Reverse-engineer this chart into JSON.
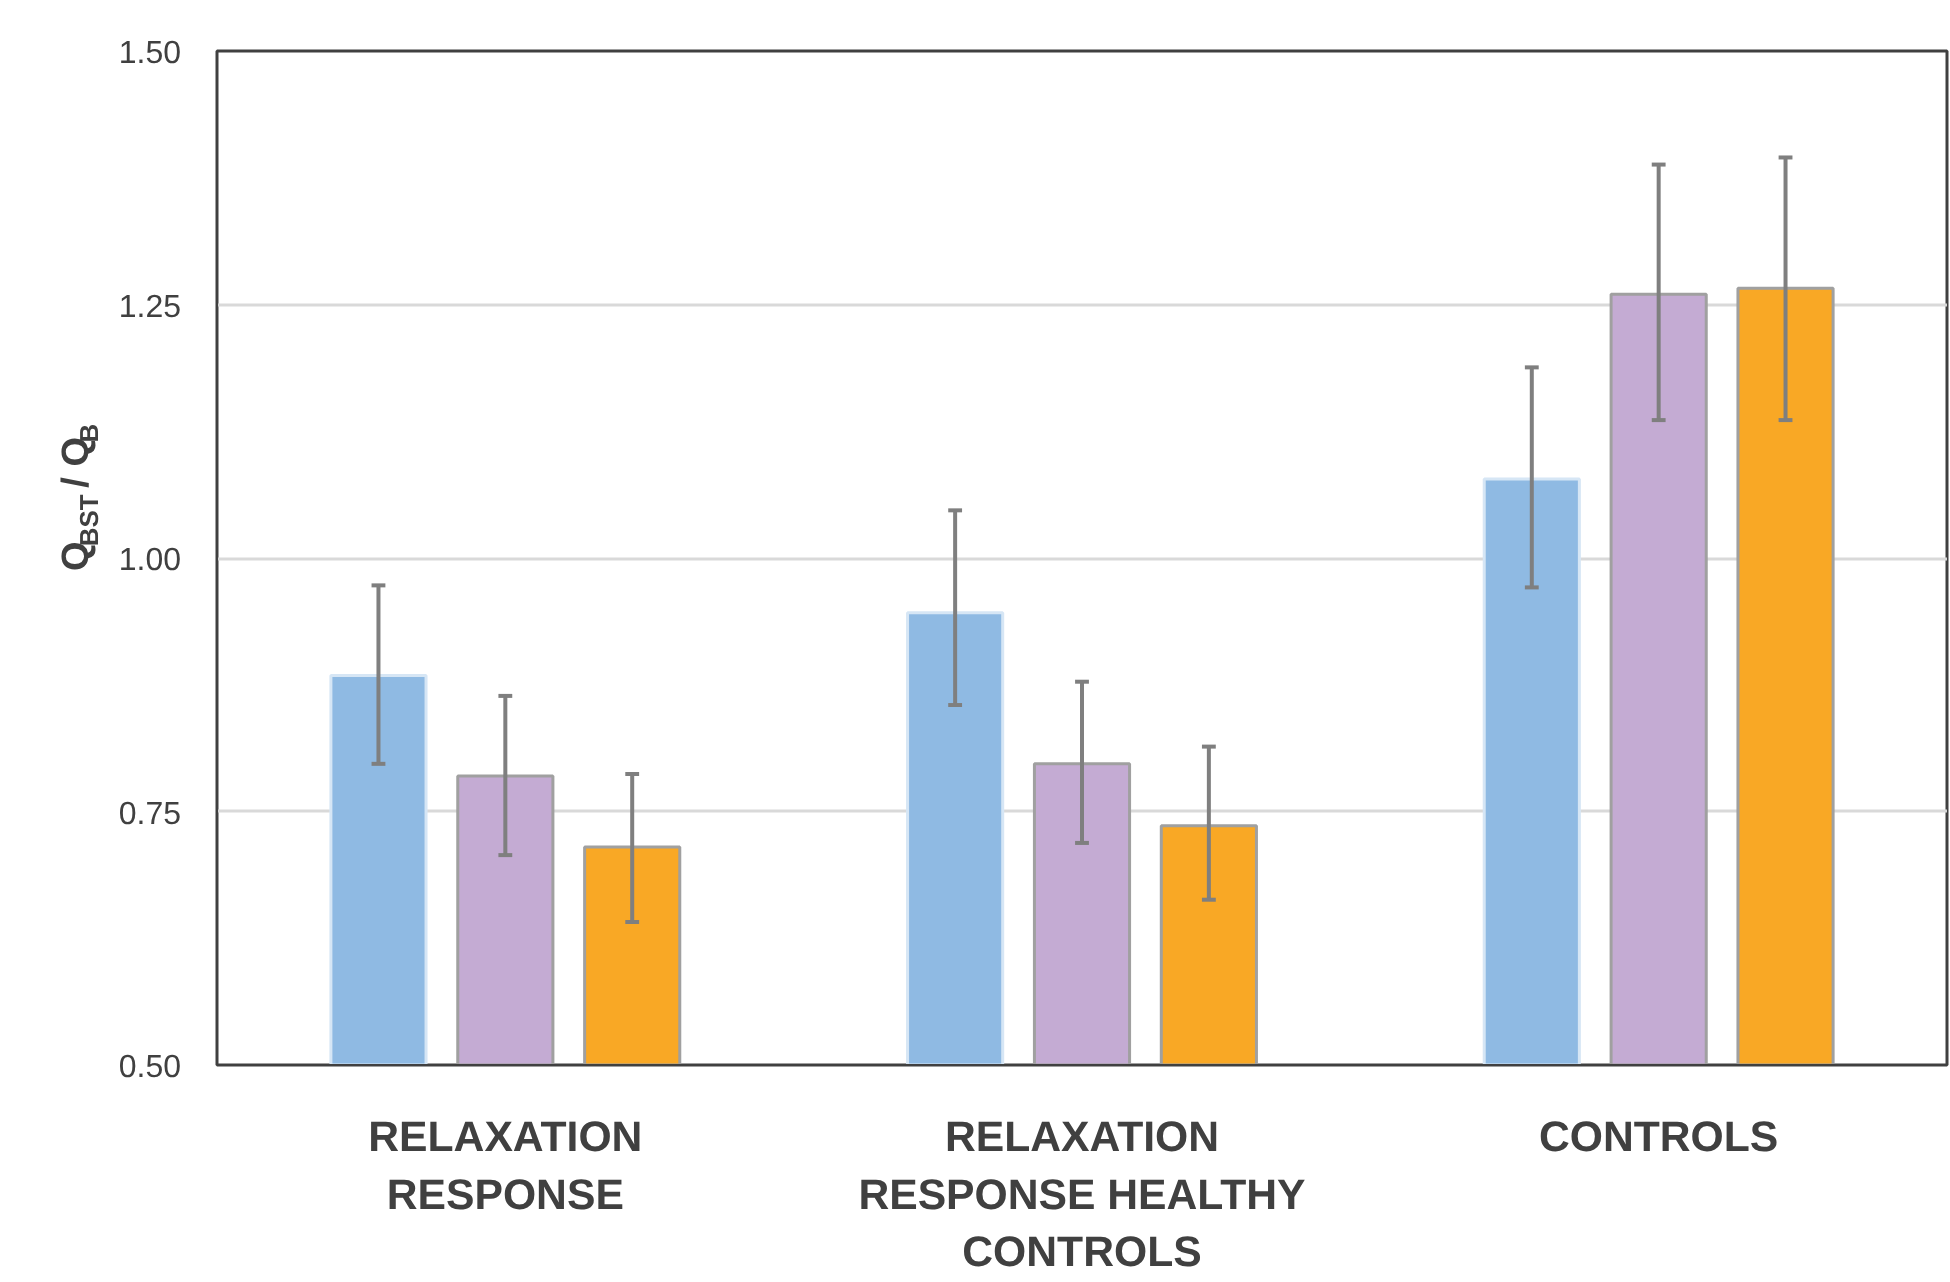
{
  "chart_data": {
    "type": "bar",
    "ylabel": "Q$_{BST}$ / Q$_{B}$",
    "categories": [
      "RELAXATION RESPONSE",
      "RELAXATION RESPONSE HEALTHY CONTROLS",
      "CONTROLS"
    ],
    "series": [
      {
        "color": "#8fbae3",
        "values": [
          0.884,
          0.946,
          1.078
        ],
        "errors": [
          [
            0.797,
            0.973
          ],
          [
            0.855,
            1.047
          ],
          [
            0.971,
            1.188
          ]
        ]
      },
      {
        "color": "#c4abd3",
        "values": [
          0.785,
          0.797,
          1.26
        ],
        "errors": [
          [
            0.707,
            0.864
          ],
          [
            0.719,
            0.878
          ],
          [
            1.136,
            1.388
          ]
        ]
      },
      {
        "color": "#f9a825",
        "values": [
          0.715,
          0.736,
          1.266
        ],
        "errors": [
          [
            0.641,
            0.787
          ],
          [
            0.663,
            0.814
          ],
          [
            1.136,
            1.395
          ]
        ]
      }
    ],
    "ylim": [
      0.5,
      1.5
    ],
    "yticks": [
      {
        "value": 0.5,
        "label": "0.50"
      },
      {
        "value": 0.75,
        "label": "0.75"
      },
      {
        "value": 1.0,
        "label": "1.00"
      },
      {
        "value": 1.25,
        "label": "1.25"
      },
      {
        "value": 1.5,
        "label": "1.50"
      }
    ],
    "grid": "y",
    "legend": false
  }
}
